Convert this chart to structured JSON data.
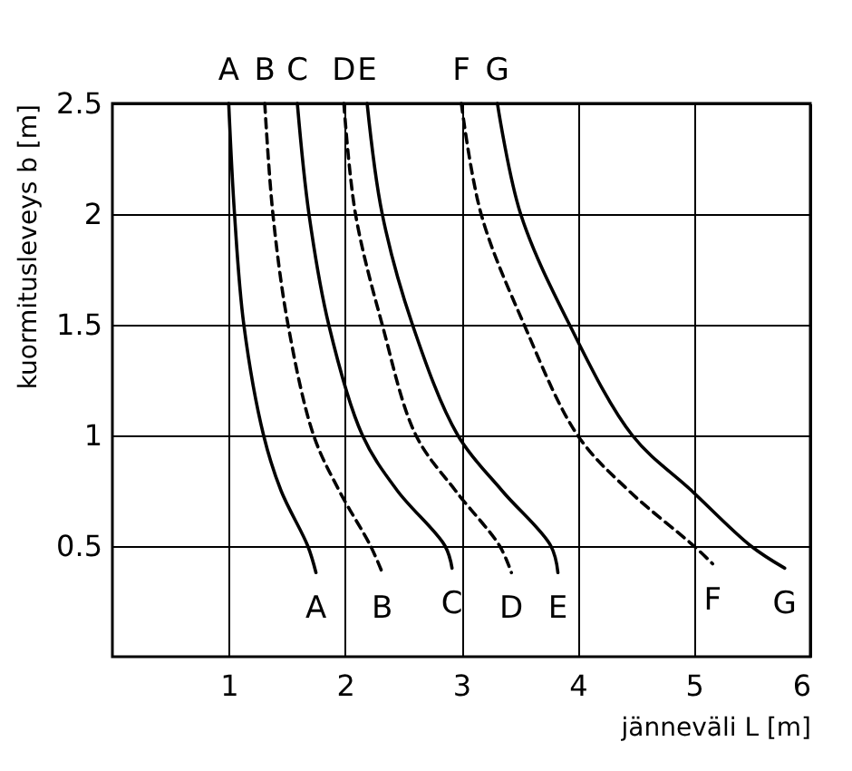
{
  "chart_data": {
    "type": "line",
    "xlabel": "jänneväli L [m]",
    "ylabel": "kuormitusleveys b [m]",
    "xlim": [
      0,
      6
    ],
    "xticks": [
      1,
      2,
      3,
      4,
      5,
      6
    ],
    "ylim": [
      0,
      2.5
    ],
    "yticks": [
      0.5,
      1,
      1.5,
      2,
      2.5
    ],
    "grid": true,
    "legend": false,
    "series": [
      {
        "name": "A",
        "color": "#000000",
        "line_style": "solid",
        "x": [
          1.0,
          1.05,
          1.13,
          1.3,
          1.45,
          1.68,
          1.75
        ],
        "values": [
          2.5,
          2,
          1.5,
          1,
          0.75,
          0.5,
          0.38
        ]
      },
      {
        "name": "B",
        "color": "#000000",
        "line_style": "dashed",
        "x": [
          1.31,
          1.38,
          1.51,
          1.73,
          1.95,
          2.22,
          2.32
        ],
        "values": [
          2.5,
          2,
          1.5,
          1,
          0.75,
          0.5,
          0.38
        ]
      },
      {
        "name": "C",
        "color": "#000000",
        "line_style": "solid",
        "x": [
          1.59,
          1.69,
          1.86,
          2.15,
          2.45,
          2.86,
          2.92
        ],
        "values": [
          2.5,
          2,
          1.5,
          1,
          0.75,
          0.5,
          0.4
        ]
      },
      {
        "name": "D",
        "color": "#000000",
        "line_style": "dashed",
        "x": [
          1.99,
          2.09,
          2.32,
          2.61,
          2.95,
          3.33,
          3.43
        ],
        "values": [
          2.5,
          2,
          1.5,
          1,
          0.75,
          0.5,
          0.38
        ]
      },
      {
        "name": "E",
        "color": "#000000",
        "line_style": "solid",
        "x": [
          2.19,
          2.32,
          2.58,
          2.97,
          3.35,
          3.77,
          3.83
        ],
        "values": [
          2.5,
          2,
          1.5,
          1,
          0.75,
          0.5,
          0.38
        ]
      },
      {
        "name": "F",
        "color": "#000000",
        "line_style": "dashed",
        "x": [
          3.0,
          3.17,
          3.54,
          4.0,
          4.44,
          5.0,
          5.16
        ],
        "values": [
          2.5,
          2,
          1.5,
          1,
          0.75,
          0.5,
          0.42
        ]
      },
      {
        "name": "G",
        "color": "#000000",
        "line_style": "solid",
        "x": [
          3.31,
          3.51,
          3.93,
          4.47,
          4.98,
          5.49,
          5.78
        ],
        "values": [
          2.5,
          2,
          1.5,
          1,
          0.75,
          0.5,
          0.4
        ]
      }
    ]
  }
}
